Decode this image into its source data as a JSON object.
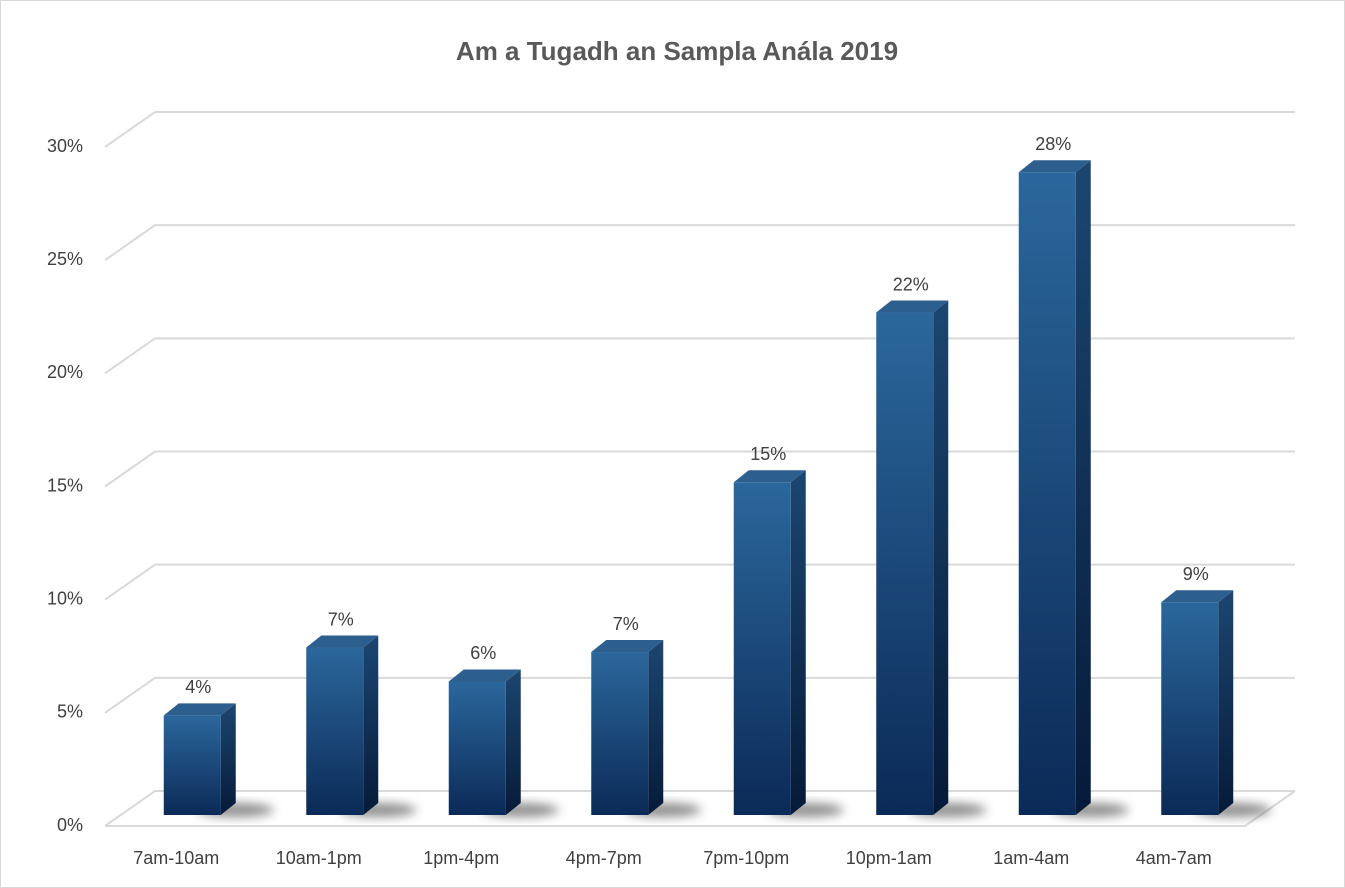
{
  "chart_data": {
    "type": "bar",
    "title": "Am a Tugadh an Sampla Anála 2019",
    "categories": [
      "7am-10am",
      "10am-1pm",
      "1pm-4pm",
      "4pm-7pm",
      "7pm-10pm",
      "10pm-1am",
      "1am-4am",
      "4am-7am"
    ],
    "values": [
      4.4,
      7.4,
      5.9,
      7.2,
      14.7,
      22.2,
      28.4,
      9.4
    ],
    "value_labels": [
      "4%",
      "7%",
      "6%",
      "7%",
      "15%",
      "22%",
      "28%",
      "9%"
    ],
    "color": "#1f4e86",
    "ylim": [
      0,
      30
    ],
    "yticks": [
      {
        "value": 0,
        "label": "0%"
      },
      {
        "value": 5,
        "label": "5%"
      },
      {
        "value": 10,
        "label": "10%"
      },
      {
        "value": 15,
        "label": "15%"
      },
      {
        "value": 20,
        "label": "20%"
      },
      {
        "value": 25,
        "label": "25%"
      },
      {
        "value": 30,
        "label": "30%"
      }
    ],
    "grid": true
  }
}
